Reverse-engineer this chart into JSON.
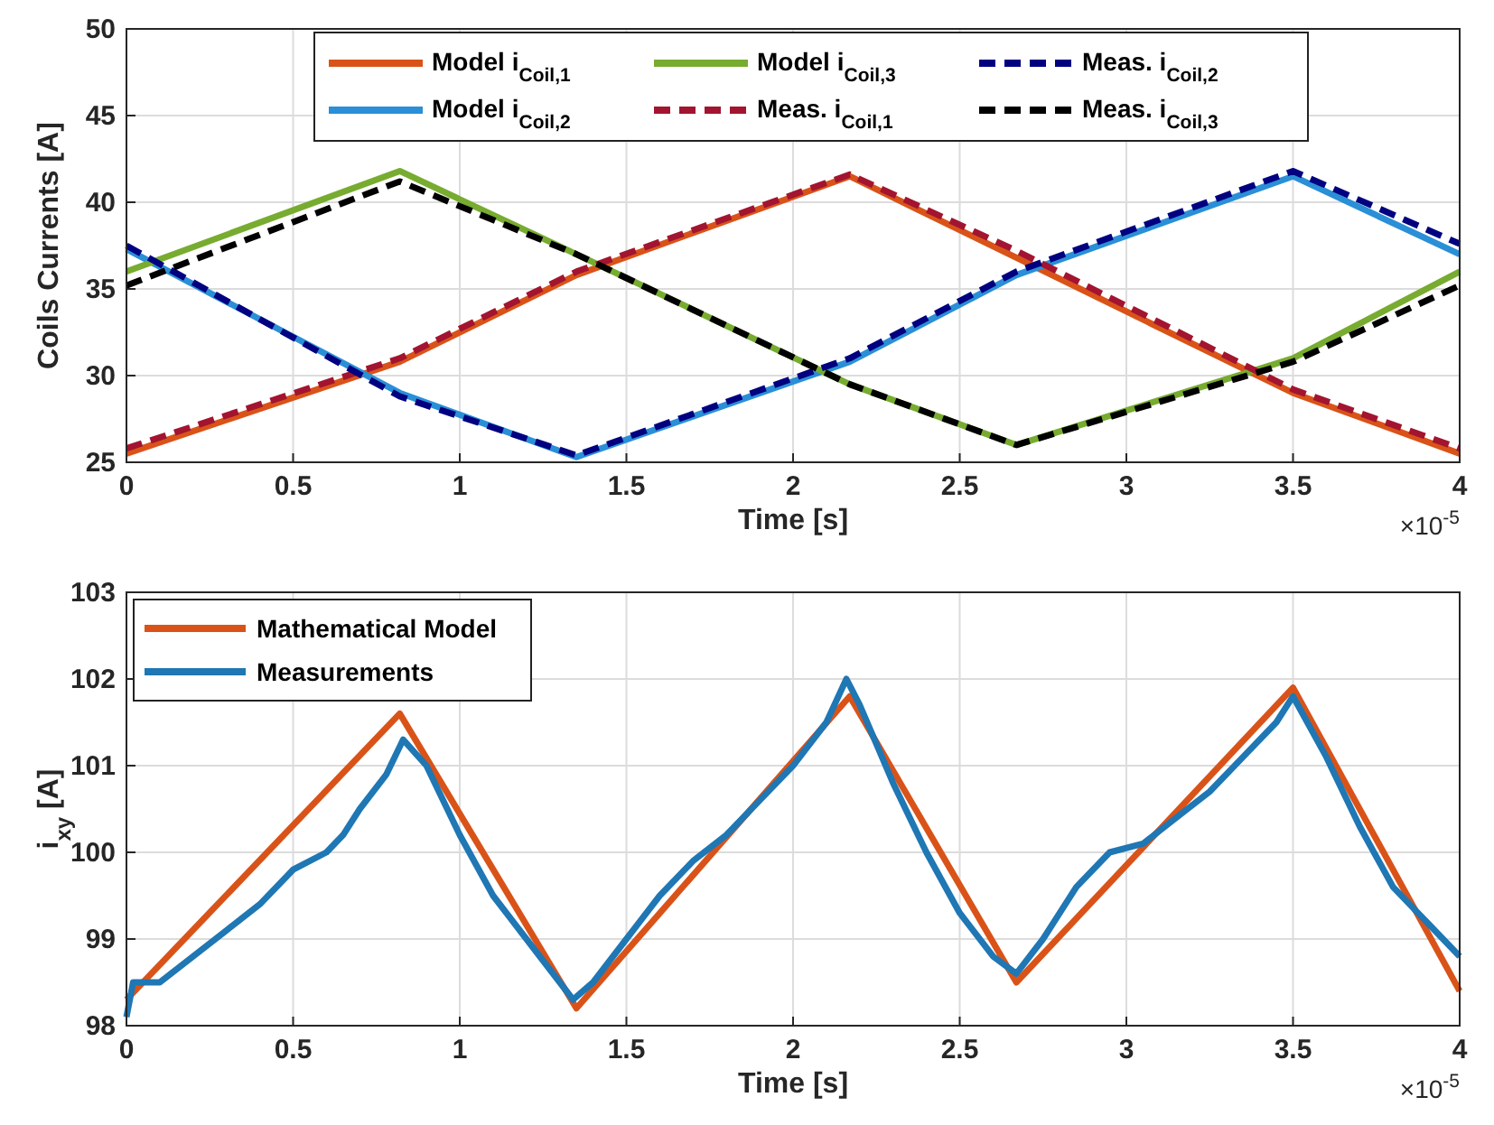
{
  "chart_data": [
    {
      "type": "line",
      "xlabel": "Time [s]",
      "ylabel": "Coils Currents [A]",
      "xlim": [
        0,
        4
      ],
      "ylim": [
        25,
        50
      ],
      "xticks": [
        0,
        0.5,
        1,
        1.5,
        2,
        2.5,
        3,
        3.5,
        4
      ],
      "yticks": [
        25,
        30,
        35,
        40,
        45,
        50
      ],
      "grid": true,
      "legend": "top",
      "annotations": [
        "×10$^{-5}$"
      ],
      "series": [
        {
          "name": "Model i$_{Coil,1}$",
          "color": "#d95319",
          "line_style": "solid",
          "x": [
            0,
            0.82,
            1.35,
            2.17,
            2.67,
            3.5,
            4
          ],
          "values": [
            25.5,
            30.8,
            35.8,
            41.5,
            36.8,
            29,
            25.5
          ]
        },
        {
          "name": "Model i$_{Coil,2}$",
          "color": "#2a8fd6",
          "line_style": "solid",
          "x": [
            0,
            0.82,
            1.35,
            2.17,
            2.67,
            3.5,
            4
          ],
          "values": [
            37.3,
            29,
            25.3,
            30.8,
            35.8,
            41.5,
            37
          ]
        },
        {
          "name": "Model i$_{Coil,3}$",
          "color": "#77ac30",
          "line_style": "solid",
          "x": [
            0,
            0.82,
            1.35,
            2.17,
            2.67,
            3.5,
            4
          ],
          "values": [
            36,
            41.8,
            37,
            29.5,
            26,
            31,
            36
          ]
        },
        {
          "name": "Meas. i$_{Coil,1}$",
          "color": "#a2142f",
          "line_style": "dashed",
          "x": [
            0,
            0.82,
            1.35,
            2.17,
            2.67,
            3.5,
            4
          ],
          "values": [
            25.8,
            31,
            36,
            41.6,
            37.2,
            29.2,
            25.8
          ]
        },
        {
          "name": "Meas. i$_{Coil,2}$",
          "color": "#000080",
          "line_style": "dashed",
          "x": [
            0,
            0.82,
            1.35,
            2.17,
            2.67,
            3.5,
            4
          ],
          "values": [
            37.5,
            28.8,
            25.4,
            31,
            36,
            41.8,
            37.6
          ]
        },
        {
          "name": "Meas. i$_{Coil,3}$",
          "color": "#000000",
          "line_style": "dashed",
          "x": [
            0,
            0.82,
            1.35,
            2.17,
            2.67,
            3.5,
            4
          ],
          "values": [
            35.2,
            41.2,
            37,
            29.5,
            26,
            30.8,
            35.2
          ]
        }
      ]
    },
    {
      "type": "line",
      "xlabel": "Time [s]",
      "ylabel": "i$_{xy}$ [A]",
      "xlim": [
        0,
        4
      ],
      "ylim": [
        98,
        103
      ],
      "xticks": [
        0,
        0.5,
        1,
        1.5,
        2,
        2.5,
        3,
        3.5,
        4
      ],
      "yticks": [
        98,
        99,
        100,
        101,
        102,
        103
      ],
      "grid": true,
      "legend": "top left",
      "annotations": [
        "×10$^{-5}$"
      ],
      "series": [
        {
          "name": "Mathematical Model",
          "color": "#d95319",
          "line_style": "solid",
          "x": [
            0,
            0.82,
            1.35,
            2.17,
            2.67,
            3.5,
            4
          ],
          "values": [
            98.3,
            101.6,
            98.2,
            101.8,
            98.5,
            101.9,
            98.4
          ]
        },
        {
          "name": "Measurements",
          "color": "#1f77b4",
          "line_style": "solid",
          "x": [
            0,
            0.02,
            0.1,
            0.2,
            0.3,
            0.4,
            0.5,
            0.6,
            0.65,
            0.7,
            0.78,
            0.83,
            0.9,
            1.0,
            1.1,
            1.2,
            1.3,
            1.34,
            1.4,
            1.5,
            1.6,
            1.7,
            1.8,
            1.9,
            2.0,
            2.1,
            2.16,
            2.2,
            2.3,
            2.4,
            2.5,
            2.6,
            2.67,
            2.75,
            2.85,
            2.95,
            3.05,
            3.15,
            3.25,
            3.35,
            3.45,
            3.5,
            3.6,
            3.7,
            3.8,
            3.9,
            4
          ],
          "values": [
            98.1,
            98.5,
            98.5,
            98.8,
            99.1,
            99.4,
            99.8,
            100.0,
            100.2,
            100.5,
            100.9,
            101.3,
            101.0,
            100.2,
            99.5,
            99.0,
            98.5,
            98.3,
            98.5,
            99.0,
            99.5,
            99.9,
            100.2,
            100.6,
            101.0,
            101.5,
            102.0,
            101.7,
            100.8,
            100.0,
            99.3,
            98.8,
            98.6,
            99.0,
            99.6,
            100.0,
            100.1,
            100.4,
            100.7,
            101.1,
            101.5,
            101.8,
            101.1,
            100.3,
            99.6,
            99.2,
            98.8
          ]
        }
      ]
    }
  ]
}
